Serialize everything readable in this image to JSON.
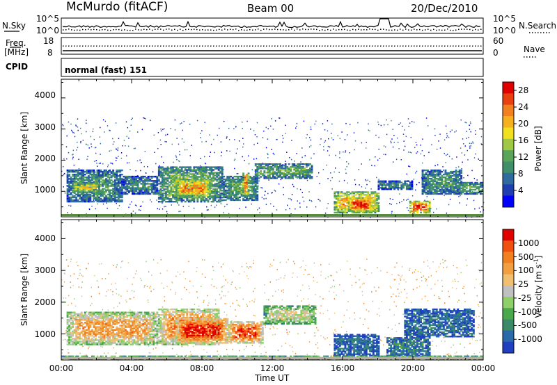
{
  "header": {
    "radar": "McMurdo (fitACF)",
    "beam": "Beam 00",
    "date": "20/Dec/2010"
  },
  "top_panels": {
    "nsky_label": "N.Sky",
    "nsearch_label": "N.Search",
    "noise_ticks_left": [
      "10^5",
      "10^0"
    ],
    "noise_ticks_right": [
      "10^5",
      "10^0"
    ],
    "freq_label_1": "Freq.",
    "freq_label_2": "[MHz]",
    "freq_ticks_left": [
      "18",
      "8"
    ],
    "nave_ticks_right": [
      "60",
      "0"
    ],
    "nave_label": "Nave",
    "cpid_label": "CPID",
    "cpid_value": "normal (fast) 151"
  },
  "chart_data": [
    {
      "type": "heatmap",
      "name": "power",
      "ylabel": "Slant Range [km]",
      "xlabel": "Time UT",
      "x_ticks": [
        "00:00",
        "04:00",
        "08:00",
        "12:00",
        "16:00",
        "20:00",
        "00:00"
      ],
      "y_ticks": [
        "1000",
        "2000",
        "3000",
        "4000"
      ],
      "ylim": [
        180,
        4600
      ],
      "xlim_hours": [
        0,
        24
      ],
      "colorbar": {
        "label": "Power [dB]",
        "ticks": [
          "4",
          "8",
          "12",
          "16",
          "20",
          "24",
          "28"
        ],
        "range": [
          0,
          30
        ],
        "colors": [
          "#0000ff",
          "#1f3fb0",
          "#2f6aa0",
          "#3f8f6a",
          "#5aa55a",
          "#9ec845",
          "#f0e020",
          "#f5b020",
          "#f08020",
          "#e84010",
          "#e00000"
        ]
      },
      "regions": [
        {
          "t0": 0.3,
          "t1": 3.5,
          "r0": 650,
          "r1": 1700,
          "level": 0.35
        },
        {
          "t0": 0.6,
          "t1": 2.2,
          "r0": 950,
          "r1": 1300,
          "level": 0.6
        },
        {
          "t0": 3.5,
          "t1": 5.5,
          "r0": 900,
          "r1": 1500,
          "level": 0.3
        },
        {
          "t0": 5.5,
          "t1": 9.2,
          "r0": 650,
          "r1": 1800,
          "level": 0.45
        },
        {
          "t0": 6.5,
          "t1": 8.5,
          "r0": 800,
          "r1": 1400,
          "level": 0.75
        },
        {
          "t0": 9.2,
          "t1": 11.2,
          "r0": 700,
          "r1": 1500,
          "level": 0.4
        },
        {
          "t0": 10.3,
          "t1": 10.7,
          "r0": 900,
          "r1": 1600,
          "level": 0.8
        },
        {
          "t0": 11.0,
          "t1": 14.3,
          "r0": 1400,
          "r1": 1900,
          "level": 0.4
        },
        {
          "t0": 15.5,
          "t1": 18.1,
          "r0": 300,
          "r1": 1000,
          "level": 0.7
        },
        {
          "t0": 16.3,
          "t1": 17.7,
          "r0": 350,
          "r1": 800,
          "level": 0.95
        },
        {
          "t0": 18.0,
          "t1": 20.0,
          "r0": 1050,
          "r1": 1350,
          "level": 0.3
        },
        {
          "t0": 19.8,
          "t1": 21.0,
          "r0": 300,
          "r1": 700,
          "level": 0.9
        },
        {
          "t0": 20.5,
          "t1": 22.8,
          "r0": 900,
          "r1": 1700,
          "level": 0.35
        },
        {
          "t0": 22.5,
          "t1": 24.0,
          "r0": 900,
          "r1": 1300,
          "level": 0.4
        }
      ]
    },
    {
      "type": "heatmap",
      "name": "velocity",
      "ylabel": "Slant Range [km]",
      "xlabel": "Time UT",
      "x_ticks": [
        "00:00",
        "04:00",
        "08:00",
        "12:00",
        "16:00",
        "20:00",
        "00:00"
      ],
      "y_ticks": [
        "1000",
        "2000",
        "3000",
        "4000"
      ],
      "ylim": [
        180,
        4600
      ],
      "xlim_hours": [
        0,
        24
      ],
      "colorbar": {
        "label": "Velocity [m s-1]",
        "label_main": "Velocity [m s",
        "label_sup": "-1",
        "label_end": "]",
        "ticks": [
          "1000",
          "500",
          "100",
          "25",
          "-25",
          "-100",
          "-500",
          "-1000"
        ],
        "range": [
          -1000,
          1000
        ],
        "colors": [
          "#2040c0",
          "#2a6aa8",
          "#3a8a6a",
          "#4aa84a",
          "#8ecf6a",
          "#c0c0c0",
          "#f0c070",
          "#f0a040",
          "#f08020",
          "#f05010",
          "#e00000"
        ]
      },
      "regions": [
        {
          "t0": 0.3,
          "t1": 5.5,
          "r0": 650,
          "r1": 1700,
          "level": 0.7
        },
        {
          "t0": 5.5,
          "t1": 9.0,
          "r0": 650,
          "r1": 1800,
          "level": 0.78
        },
        {
          "t0": 6.5,
          "t1": 9.5,
          "r0": 700,
          "r1": 1500,
          "level": 0.95
        },
        {
          "t0": 9.5,
          "t1": 11.5,
          "r0": 700,
          "r1": 1400,
          "level": 0.9
        },
        {
          "t0": 11.5,
          "t1": 14.5,
          "r0": 1300,
          "r1": 1900,
          "level": 0.5
        },
        {
          "t0": 15.5,
          "t1": 18.1,
          "r0": 300,
          "r1": 1000,
          "level": 0.15
        },
        {
          "t0": 18.5,
          "t1": 21.0,
          "r0": 300,
          "r1": 900,
          "level": 0.2
        },
        {
          "t0": 19.5,
          "t1": 23.5,
          "r0": 900,
          "r1": 1800,
          "level": 0.15
        },
        {
          "t0": 0.0,
          "t1": 24.0,
          "r0": 200,
          "r1": 320,
          "level": 0.5
        }
      ]
    }
  ]
}
